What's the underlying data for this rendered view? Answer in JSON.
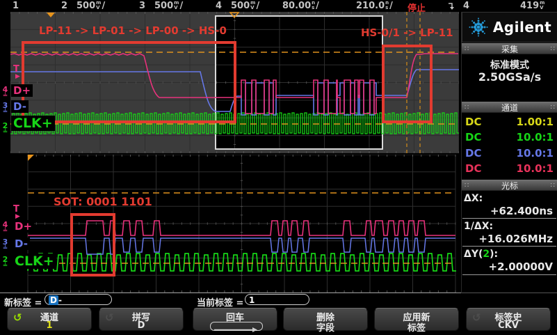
{
  "top_bar": {
    "channels": [
      {
        "num": "1",
        "value": "",
        "unit_top": "",
        "unit_bottom": "",
        "slash": ""
      },
      {
        "num": "2",
        "value": "500",
        "unit_top": "m",
        "unit_bottom": "V",
        "slash": "/"
      },
      {
        "num": "3",
        "value": "500",
        "unit_top": "m",
        "unit_bottom": "V",
        "slash": "/"
      },
      {
        "num": "4",
        "value": "500",
        "unit_top": "m",
        "unit_bottom": "V",
        "slash": "/"
      }
    ],
    "timebase": {
      "value": "80.00",
      "unit_top": "n",
      "unit_bottom": "s",
      "slash": "/"
    },
    "delay": {
      "value": "210.0",
      "unit_top": "n",
      "unit_bottom": "s",
      "slash": "/"
    },
    "status": "停止",
    "trigger": {
      "source": "4",
      "level": "419",
      "unit_top": "m",
      "unit_bottom": "V"
    }
  },
  "panes": {
    "upper": {
      "annotation_left": "LP-11 -> LP-01 -> LP-00 -> HS-0",
      "annotation_right": "HS-0/1 -> LP-11",
      "trigger_label": "T",
      "labels": {
        "ch4": "D+",
        "ch3": "D-",
        "ch2": "CLK+"
      },
      "markers": {
        "ch4": "4",
        "ch3": "3",
        "ch2": "2"
      }
    },
    "lower": {
      "annotation": "SOT: 0001 1101",
      "trigger_label": "T",
      "labels": {
        "ch4": "D+",
        "ch3": "D-",
        "ch2": "CLK+"
      },
      "markers": {
        "ch4": "4",
        "ch3": "3",
        "ch2": "2"
      }
    }
  },
  "sidebar": {
    "brand": "Agilent",
    "acquisition": {
      "title": "采集",
      "mode": "标准模式",
      "rate": "2.50GSa/s"
    },
    "channels": {
      "title": "通道",
      "rows": [
        {
          "coupling": "DC",
          "ratio": "1.00:1"
        },
        {
          "coupling": "DC",
          "ratio": "10.0:1"
        },
        {
          "coupling": "DC",
          "ratio": "10.0:1"
        },
        {
          "coupling": "DC",
          "ratio": "10.0:1"
        }
      ]
    },
    "cursors": {
      "title": "光标",
      "dx_label": "ΔX:",
      "dx_value": "+62.400ns",
      "inv_label": "1/ΔX:",
      "inv_value": "+16.026MHz",
      "dy_prefix": "ΔY(",
      "dy_chan": "2",
      "dy_suffix": "):",
      "dy_value": "+2.00000V"
    }
  },
  "bottom": {
    "new_label": "新标签 =",
    "new_value_selected": "D",
    "new_value_rest": "-",
    "current_label": "当前标签 =",
    "current_value": "1",
    "softkeys": [
      {
        "line1": "通道",
        "line2": "1"
      },
      {
        "line1": "拼写",
        "line2": "D"
      },
      {
        "line1": "回车",
        "line2": ""
      },
      {
        "line1": "删除",
        "line2": "字段"
      },
      {
        "line1": "应用新",
        "line2": "标签"
      },
      {
        "line1": "标签史",
        "line2": "CKV"
      }
    ]
  },
  "colors": {
    "ch1": "#d8d818",
    "ch2": "#17d517",
    "ch3": "#6678e8",
    "ch4": "#e8327c",
    "cursor_orange": "#e0911e",
    "annotation_red": "#e23b30",
    "status_red": "#e03030"
  }
}
